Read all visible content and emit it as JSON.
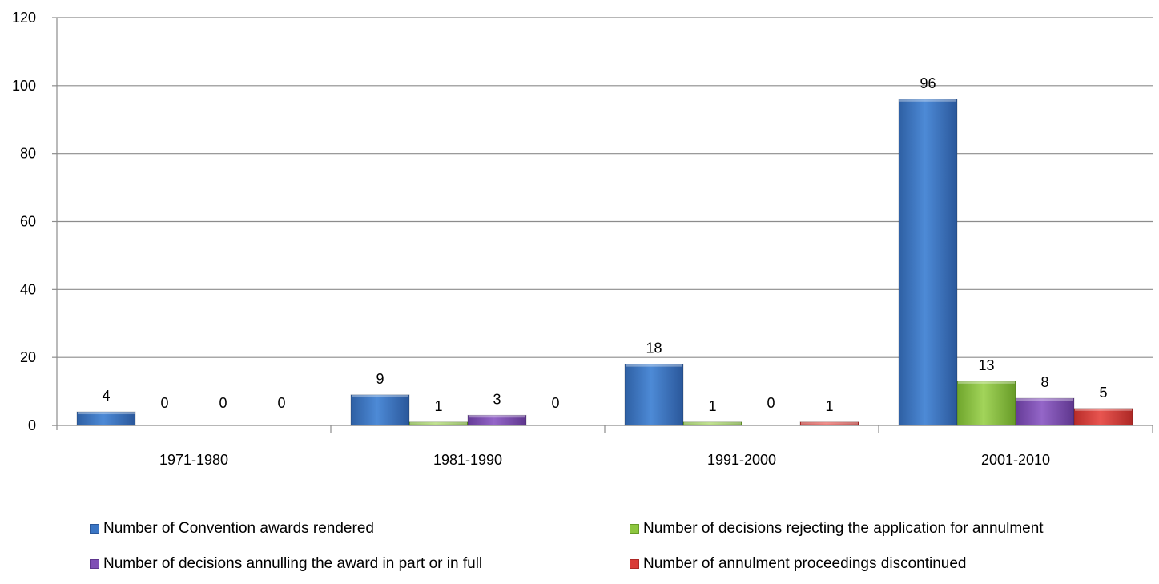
{
  "chart_data": {
    "type": "bar",
    "title": "",
    "xlabel": "",
    "ylabel": "",
    "categories": [
      "1971-1980",
      "1981-1990",
      "1991-2000",
      "2001-2010"
    ],
    "ylim": [
      0,
      120
    ],
    "yticks": [
      0,
      20,
      40,
      60,
      80,
      100,
      120
    ],
    "grid": true,
    "legend_position": "bottom",
    "series": [
      {
        "name": "Number of Convention awards rendered",
        "values": [
          4,
          9,
          18,
          96
        ],
        "color": "#3A75C4"
      },
      {
        "name": "Number of decisions rejecting the application for annulment",
        "values": [
          0,
          1,
          1,
          13
        ],
        "color": "#8DC63F"
      },
      {
        "name": "Number of decisions annulling the award in part or in full",
        "values": [
          0,
          3,
          0,
          8
        ],
        "color": "#7F4FB5"
      },
      {
        "name": "Number of annulment proceedings discontinued",
        "values": [
          0,
          0,
          1,
          5
        ],
        "color": "#D93A36"
      }
    ]
  }
}
